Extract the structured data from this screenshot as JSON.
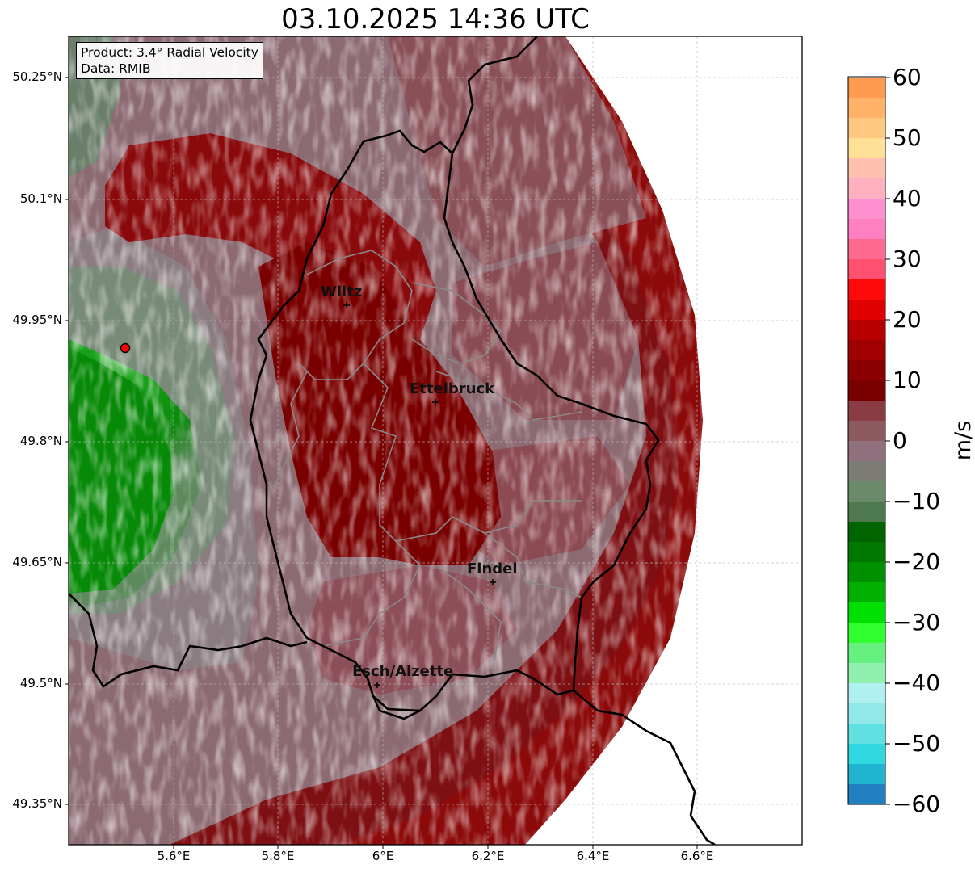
{
  "title": "03.10.2025 14:36 UTC",
  "info": {
    "product": "Product: 3.4° Radial Velocity",
    "data_source": "Data: RMIB"
  },
  "axes": {
    "lat_ticks": [
      "50.25°N",
      "50.1°N",
      "49.95°N",
      "49.8°N",
      "49.65°N",
      "49.5°N",
      "49.35°N"
    ],
    "lon_ticks": [
      "5.6°E",
      "5.8°E",
      "6°E",
      "6.2°E",
      "6.4°E",
      "6.6°E"
    ]
  },
  "cities": [
    {
      "name": "Wiltz"
    },
    {
      "name": "Ettelbruck"
    },
    {
      "name": "Findel"
    },
    {
      "name": "Esch/Alzette"
    }
  ],
  "colorbar": {
    "unit": "m/s",
    "ticks": [
      "60",
      "50",
      "40",
      "30",
      "20",
      "10",
      "0",
      "−10",
      "−20",
      "−30",
      "−40",
      "−50",
      "−60"
    ],
    "colors_top_to_bottom": [
      "#ff9a50",
      "#ffb268",
      "#ffc880",
      "#ffe096",
      "#ffc0b0",
      "#ffb0c0",
      "#ff90d0",
      "#ff80c0",
      "#ff6a90",
      "#ff5070",
      "#ff0a0a",
      "#e00000",
      "#b80000",
      "#a00000",
      "#8a0000",
      "#7a0000",
      "#8a3c44",
      "#8e5a62",
      "#90707c",
      "#7c7c74",
      "#6a8a6a",
      "#4e784e",
      "#006400",
      "#007800",
      "#009000",
      "#00b000",
      "#00e000",
      "#30ff30",
      "#66f080",
      "#90f0b0",
      "#b0f0f0",
      "#90e8e8",
      "#60e0e0",
      "#30d8e0",
      "#20b4d0",
      "#2080c0"
    ]
  }
}
